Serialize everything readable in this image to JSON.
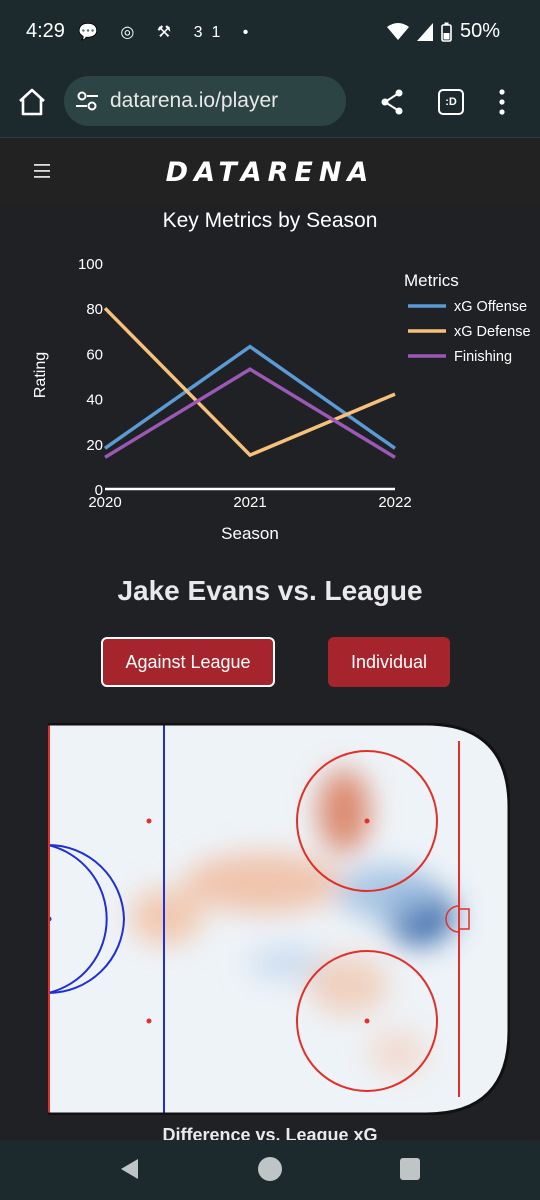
{
  "status_bar": {
    "time": "4:29",
    "battery": "50%",
    "notif_icons": "💬 ◎ ⚒ 31 •"
  },
  "browser": {
    "url": "datarena.io/player",
    "tabs_icon_label": ":D"
  },
  "site": {
    "logo": "DATARENA"
  },
  "chart_data": {
    "type": "line",
    "title": "Key Metrics by Season",
    "xlabel": "Season",
    "ylabel": "Rating",
    "x": [
      "2020",
      "2021",
      "2022"
    ],
    "ylim": [
      0,
      100
    ],
    "yticks": [
      "0",
      "20",
      "40",
      "60",
      "80",
      "100"
    ],
    "legend_title": "Metrics",
    "legend_position": "top-right",
    "series": [
      {
        "name": "xG Offense",
        "color": "#5b9bd5",
        "values": [
          18,
          63,
          18
        ]
      },
      {
        "name": "xG Defense",
        "color": "#f7c17b",
        "values": [
          80,
          15,
          42
        ]
      },
      {
        "name": "Finishing",
        "color": "#9b59b6",
        "values": [
          14,
          53,
          14
        ]
      }
    ]
  },
  "player_section": {
    "title": "Jake Evans vs. League",
    "buttons": [
      "Against League",
      "Individual"
    ],
    "caption": "Difference vs. League xG"
  }
}
